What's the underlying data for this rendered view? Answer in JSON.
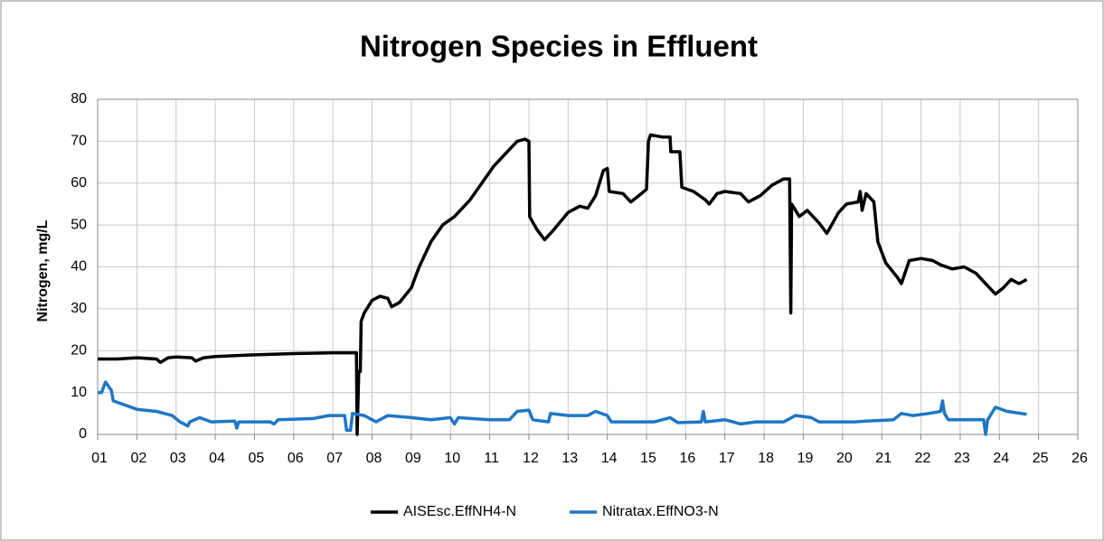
{
  "chart_data": {
    "type": "line",
    "title": "Nitrogen Species in Effluent",
    "y_label": "Nitrogen, mg/L",
    "xlim": [
      1,
      26
    ],
    "ylim": [
      0,
      80
    ],
    "xticks": [
      {
        "value": 1,
        "label": "01"
      },
      {
        "value": 2,
        "label": "02"
      },
      {
        "value": 3,
        "label": "03"
      },
      {
        "value": 4,
        "label": "04"
      },
      {
        "value": 5,
        "label": "05"
      },
      {
        "value": 6,
        "label": "06"
      },
      {
        "value": 7,
        "label": "07"
      },
      {
        "value": 8,
        "label": "08"
      },
      {
        "value": 9,
        "label": "09"
      },
      10,
      11,
      12,
      13,
      14,
      15,
      16,
      17,
      18,
      19,
      20,
      21,
      22,
      23,
      24,
      25,
      26
    ],
    "yticks": [
      0,
      10,
      20,
      30,
      40,
      50,
      60,
      70,
      80
    ],
    "grid": true,
    "legend": "bottom",
    "series": [
      {
        "name": "AISEsc.EffNH4-N",
        "color": "#000000",
        "x": [
          1.0,
          1.5,
          2.0,
          2.5,
          2.6,
          2.8,
          3.0,
          3.4,
          3.5,
          3.7,
          4.0,
          5,
          6,
          7,
          7.6,
          7.62,
          7.66,
          7.7,
          7.72,
          7.8,
          8.0,
          8.2,
          8.4,
          8.5,
          8.7,
          9.0,
          9.2,
          9.5,
          9.8,
          10.1,
          10.5,
          10.8,
          11.1,
          11.4,
          11.7,
          11.9,
          12.0,
          12.02,
          12.2,
          12.4,
          12.6,
          13.0,
          13.3,
          13.5,
          13.7,
          13.9,
          14.0,
          14.05,
          14.4,
          14.6,
          14.8,
          15.0,
          15.05,
          15.1,
          15.4,
          15.6,
          15.62,
          15.85,
          15.9,
          16.2,
          16.5,
          16.6,
          16.8,
          17.0,
          17.4,
          17.6,
          17.9,
          18.2,
          18.5,
          18.65,
          18.68,
          18.7,
          18.9,
          19.1,
          19.4,
          19.6,
          19.9,
          20.1,
          20.4,
          20.45,
          20.5,
          20.6,
          20.8,
          20.9,
          21.1,
          21.4,
          21.5,
          21.7,
          22.0,
          22.3,
          22.5,
          22.8,
          23.1,
          23.4,
          23.7,
          23.9,
          24.1,
          24.3,
          24.5,
          24.7
        ],
        "values": [
          18,
          18,
          18.3,
          18,
          17.2,
          18.3,
          18.5,
          18.3,
          17.5,
          18.3,
          18.6,
          19,
          19.3,
          19.5,
          19.5,
          0,
          15,
          15,
          27,
          29,
          32,
          33,
          32.5,
          30.5,
          31.5,
          35,
          40,
          46,
          50,
          52,
          56,
          60,
          64,
          67,
          70,
          70.5,
          70,
          52,
          49,
          46.5,
          48.5,
          53,
          54.5,
          54,
          57,
          63,
          63.5,
          58,
          57.5,
          55.5,
          57,
          58.5,
          70,
          71.5,
          71,
          71,
          67.5,
          67.5,
          59,
          58,
          56,
          55,
          57.5,
          58,
          57.5,
          55.5,
          57,
          59.5,
          61,
          61,
          29,
          55,
          52,
          53.5,
          50.5,
          48,
          53,
          55,
          55.5,
          58,
          53.5,
          57.5,
          55.5,
          46,
          41,
          37.5,
          36,
          41.5,
          42,
          41.5,
          40.5,
          39.5,
          40,
          38.5,
          35.5,
          33.5,
          35,
          37,
          36,
          37
        ]
      },
      {
        "name": "Nitratax.EffNO3-N",
        "color": "#1f77c4",
        "x": [
          1.0,
          1.1,
          1.2,
          1.35,
          1.4,
          1.7,
          2.0,
          2.5,
          2.9,
          3.1,
          3.3,
          3.35,
          3.6,
          3.9,
          4.5,
          4.55,
          4.6,
          5.4,
          5.5,
          5.6,
          6.5,
          6.9,
          7.3,
          7.35,
          7.45,
          7.5,
          7.8,
          8.1,
          8.4,
          9,
          9.5,
          10.0,
          10.1,
          10.2,
          11.0,
          11.5,
          11.7,
          12.0,
          12.1,
          12.5,
          12.55,
          13.0,
          13.5,
          13.7,
          14.0,
          14.1,
          14.7,
          15.2,
          15.6,
          15.8,
          16.4,
          16.45,
          16.5,
          17,
          17.2,
          17.4,
          17.8,
          18.5,
          18.8,
          19.2,
          19.4,
          20.3,
          20.6,
          21.3,
          21.5,
          21.8,
          22.2,
          22.5,
          22.55,
          22.6,
          22.7,
          23.2,
          23.6,
          23.65,
          23.7,
          23.9,
          24.2,
          24.7
        ],
        "values": [
          10,
          10,
          12.5,
          10.5,
          8,
          7,
          6,
          5.5,
          4.5,
          3,
          2,
          3,
          4,
          3,
          3.2,
          1.5,
          3,
          3,
          2.5,
          3.5,
          3.8,
          4.5,
          4.5,
          1,
          1,
          5,
          4.5,
          3,
          4.5,
          4,
          3.5,
          4,
          2.5,
          4,
          3.5,
          3.5,
          5.5,
          5.8,
          3.5,
          3,
          5,
          4.5,
          4.5,
          5.5,
          4.5,
          3,
          3,
          3,
          4,
          2.8,
          3,
          5.5,
          3,
          3.5,
          3,
          2.5,
          3,
          3,
          4.5,
          4,
          3,
          3,
          3.2,
          3.5,
          5,
          4.5,
          5,
          5.5,
          8,
          5,
          3.5,
          3.5,
          3.5,
          0,
          3.5,
          6.5,
          5.5,
          4.8
        ]
      }
    ]
  }
}
